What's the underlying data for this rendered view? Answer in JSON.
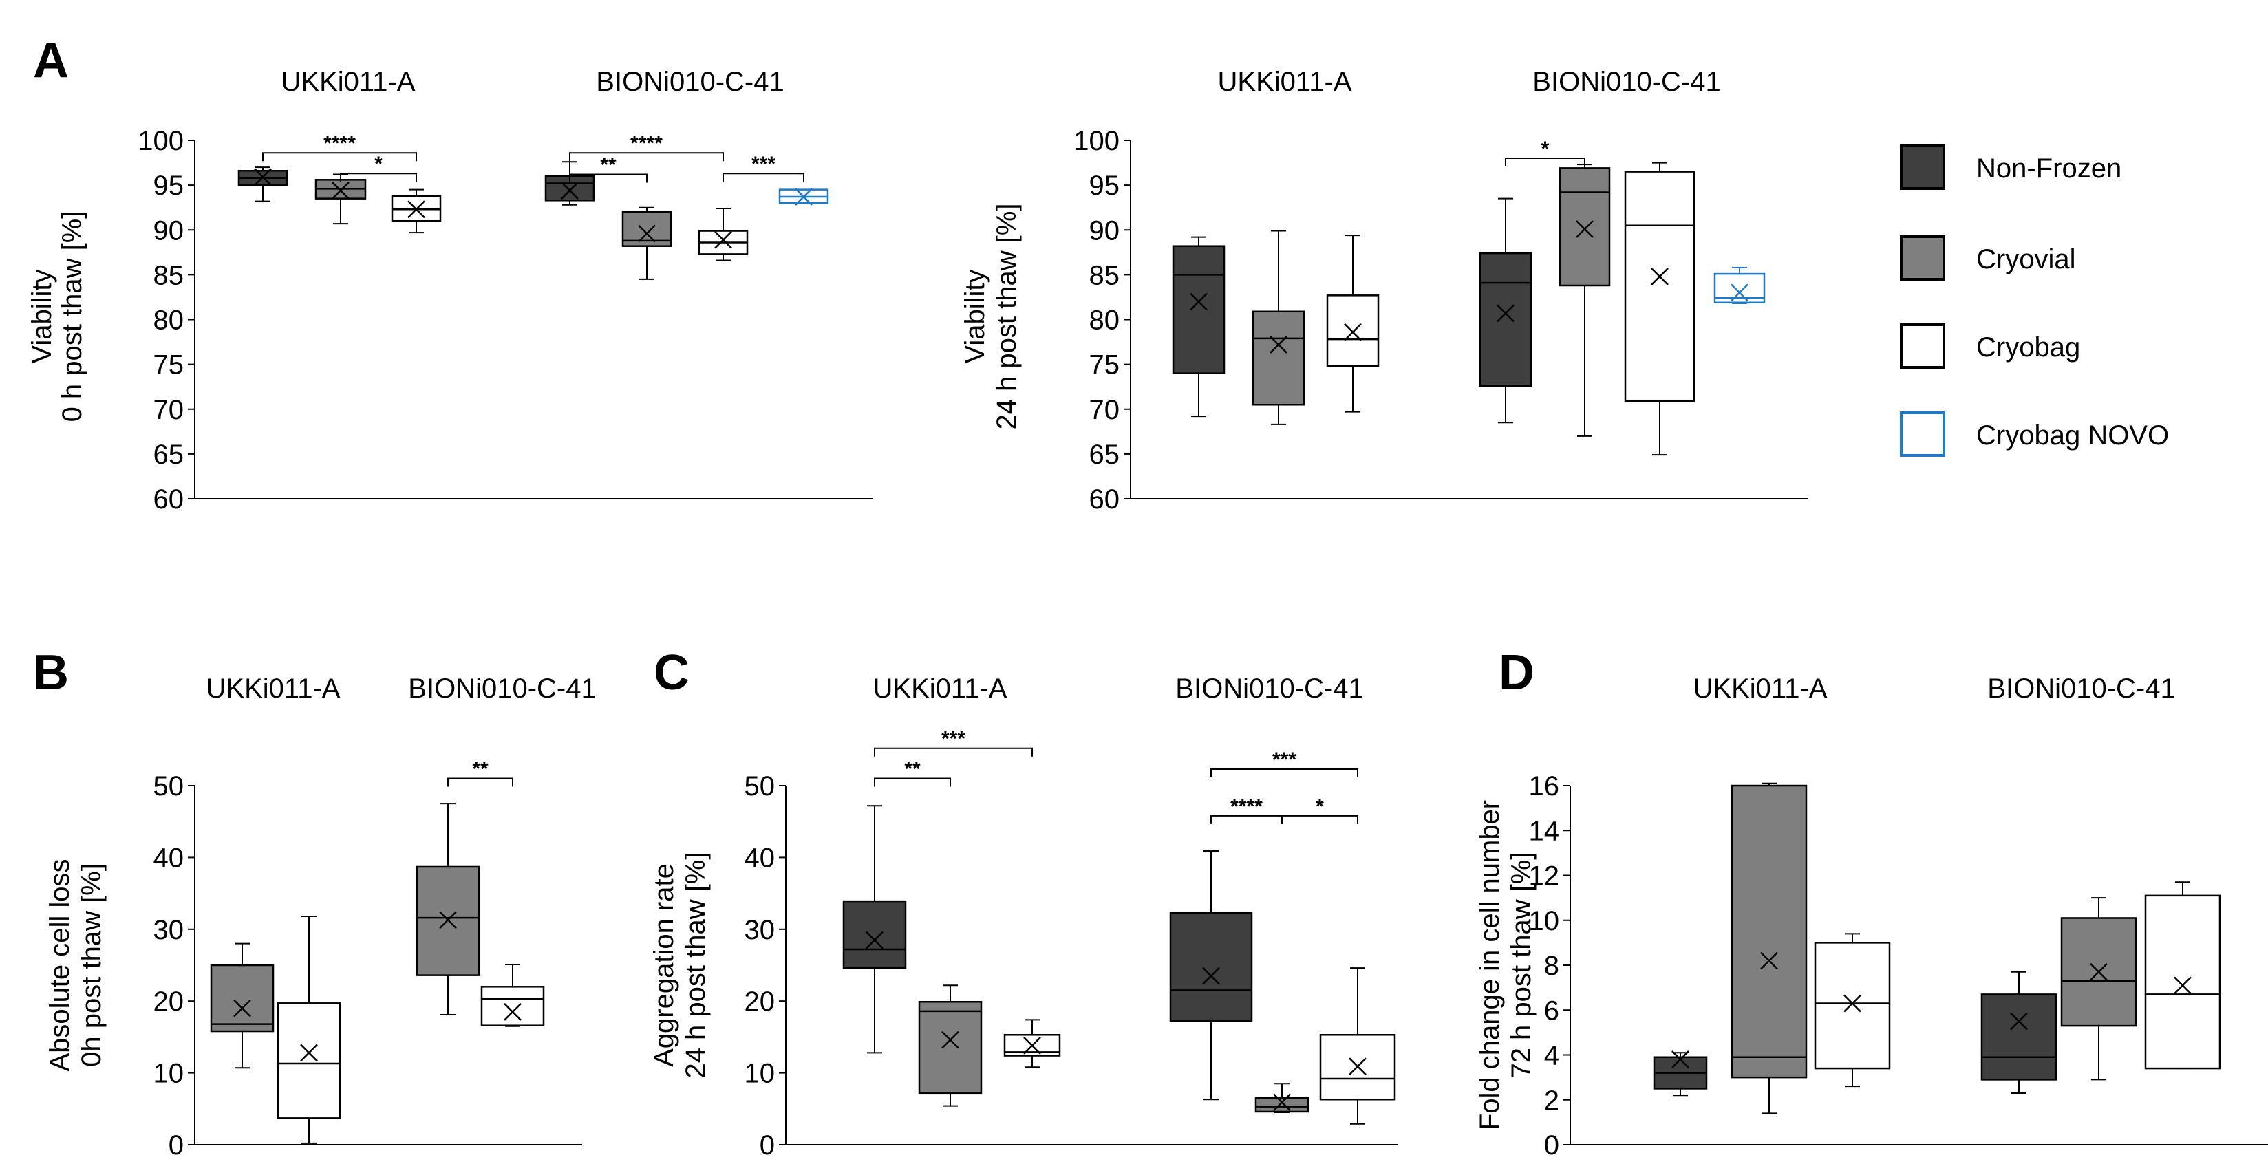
{
  "colors": {
    "non_frozen": "#3f3f3f",
    "cryovial": "#7f7f7f",
    "cryobag": "#ffffff",
    "cryobag_novo_edge": "#1f7ac8",
    "ink": "#000000"
  },
  "legend": [
    {
      "label": "Non-Frozen",
      "key": "non_frozen"
    },
    {
      "label": "Cryovial",
      "key": "cryovial"
    },
    {
      "label": "Cryobag",
      "key": "cryobag"
    },
    {
      "label": "Cryobag NOVO",
      "key": "cryobag_novo"
    }
  ],
  "chart_data": [
    {
      "id": "A-left",
      "type": "box",
      "panel_letter": "A",
      "groups": [
        "UKKi011-A",
        "BIONi010-C-41"
      ],
      "ylabel": [
        "Viability",
        "0 h post thaw [%]"
      ],
      "ylim": [
        60,
        100
      ],
      "yticks": [
        60,
        65,
        70,
        75,
        80,
        85,
        90,
        95,
        100
      ],
      "boxes": [
        {
          "group": 0,
          "series": "non_frozen",
          "min": 93.2,
          "q1": 95.0,
          "median": 95.8,
          "q3": 96.6,
          "max": 97.0,
          "mean": 95.9
        },
        {
          "group": 0,
          "series": "cryovial",
          "min": 90.7,
          "q1": 93.5,
          "median": 94.6,
          "q3": 95.6,
          "max": 96.2,
          "mean": 94.4
        },
        {
          "group": 0,
          "series": "cryobag",
          "min": 89.7,
          "q1": 91.0,
          "median": 92.3,
          "q3": 93.8,
          "max": 94.5,
          "mean": 92.3
        },
        {
          "group": 1,
          "series": "non_frozen",
          "min": 92.8,
          "q1": 93.3,
          "median": 95.2,
          "q3": 96.0,
          "max": 97.6,
          "mean": 94.4
        },
        {
          "group": 1,
          "series": "cryovial",
          "min": 84.5,
          "q1": 88.2,
          "median": 88.8,
          "q3": 92.0,
          "max": 92.5,
          "mean": 89.6
        },
        {
          "group": 1,
          "series": "cryobag",
          "min": 86.6,
          "q1": 87.3,
          "median": 88.6,
          "q3": 89.9,
          "max": 92.4,
          "mean": 88.9
        },
        {
          "group": 1,
          "series": "cryobag_novo",
          "min": 93.0,
          "q1": 93.0,
          "median": 93.7,
          "q3": 94.5,
          "max": 94.5,
          "mean": 93.7
        }
      ],
      "significance": [
        {
          "label": "****",
          "from": 0,
          "to": 2,
          "y": 98.6
        },
        {
          "label": "*",
          "from": 1,
          "to": 2,
          "y": 96.3
        },
        {
          "label": "****",
          "from": 3,
          "to": 5,
          "y": 98.6
        },
        {
          "label": "**",
          "from": 3,
          "to": 4,
          "y": 96.2
        },
        {
          "label": "***",
          "from": 5,
          "to": 6,
          "y": 96.3
        }
      ]
    },
    {
      "id": "A-right",
      "type": "box",
      "panel_letter": "",
      "groups": [
        "UKKi011-A",
        "BIONi010-C-41"
      ],
      "ylabel": [
        "Viability",
        "24 h post thaw [%]"
      ],
      "ylim": [
        60,
        100
      ],
      "yticks": [
        60,
        65,
        70,
        75,
        80,
        85,
        90,
        95,
        100
      ],
      "boxes": [
        {
          "group": 0,
          "series": "non_frozen",
          "min": 69.2,
          "q1": 74.0,
          "median": 85.0,
          "q3": 88.2,
          "max": 89.2,
          "mean": 82.0
        },
        {
          "group": 0,
          "series": "cryovial",
          "min": 68.3,
          "q1": 70.5,
          "median": 77.9,
          "q3": 80.9,
          "max": 89.9,
          "mean": 77.2
        },
        {
          "group": 0,
          "series": "cryobag",
          "min": 69.7,
          "q1": 74.8,
          "median": 77.8,
          "q3": 82.7,
          "max": 89.4,
          "mean": 78.6
        },
        {
          "group": 1,
          "series": "non_frozen",
          "min": 68.5,
          "q1": 72.6,
          "median": 84.1,
          "q3": 87.4,
          "max": 93.5,
          "mean": 80.7
        },
        {
          "group": 1,
          "series": "cryovial",
          "min": 67.0,
          "q1": 83.8,
          "median": 94.2,
          "q3": 96.9,
          "max": 97.3,
          "mean": 90.1
        },
        {
          "group": 1,
          "series": "cryobag",
          "min": 64.9,
          "q1": 70.9,
          "median": 90.5,
          "q3": 96.5,
          "max": 97.5,
          "mean": 84.8
        },
        {
          "group": 1,
          "series": "cryobag_novo",
          "min": 81.8,
          "q1": 81.9,
          "median": 82.4,
          "q3": 85.1,
          "max": 85.8,
          "mean": 83.0
        }
      ],
      "significance": [
        {
          "label": "*",
          "from": 3,
          "to": 4,
          "y": 98.0
        }
      ]
    },
    {
      "id": "B",
      "type": "box",
      "panel_letter": "B",
      "groups": [
        "UKKi011-A",
        "BIONi010-C-41"
      ],
      "ylabel": [
        "Absolute cell loss",
        "0h post thaw [%]"
      ],
      "ylim": [
        0,
        50
      ],
      "yticks": [
        0,
        10,
        20,
        30,
        40,
        50
      ],
      "boxes": [
        {
          "group": 0,
          "series": "cryovial",
          "min": 10.7,
          "q1": 15.8,
          "median": 16.8,
          "q3": 25.0,
          "max": 28.0,
          "mean": 19.0
        },
        {
          "group": 0,
          "series": "cryobag",
          "min": 0.2,
          "q1": 3.7,
          "median": 11.3,
          "q3": 19.7,
          "max": 31.8,
          "mean": 12.8
        },
        {
          "group": 1,
          "series": "cryovial",
          "min": 18.1,
          "q1": 23.6,
          "median": 31.6,
          "q3": 38.7,
          "max": 47.5,
          "mean": 31.3
        },
        {
          "group": 1,
          "series": "cryobag",
          "min": 16.5,
          "q1": 16.6,
          "median": 20.3,
          "q3": 22.0,
          "max": 25.1,
          "mean": 18.5
        }
      ],
      "significance": [
        {
          "label": "**",
          "from": 2,
          "to": 3,
          "y": 51.0
        }
      ]
    },
    {
      "id": "C",
      "type": "box",
      "panel_letter": "C",
      "groups": [
        "UKKi011-A",
        "BIONi010-C-41"
      ],
      "ylabel": [
        "Aggregation rate",
        "24 h post thaw [%]"
      ],
      "ylim": [
        0,
        50
      ],
      "yticks": [
        0,
        10,
        20,
        30,
        40,
        50
      ],
      "boxes": [
        {
          "group": 0,
          "series": "non_frozen",
          "min": 12.8,
          "q1": 24.6,
          "median": 27.2,
          "q3": 33.9,
          "max": 47.2,
          "mean": 28.5
        },
        {
          "group": 0,
          "series": "cryovial",
          "min": 5.4,
          "q1": 7.2,
          "median": 18.6,
          "q3": 19.9,
          "max": 22.2,
          "mean": 14.6
        },
        {
          "group": 0,
          "series": "cryobag",
          "min": 10.8,
          "q1": 12.4,
          "median": 12.9,
          "q3": 15.3,
          "max": 17.4,
          "mean": 13.8
        },
        {
          "group": 1,
          "series": "non_frozen",
          "min": 6.3,
          "q1": 17.2,
          "median": 21.5,
          "q3": 32.3,
          "max": 40.9,
          "mean": 23.5
        },
        {
          "group": 1,
          "series": "cryovial",
          "min": 4.5,
          "q1": 4.6,
          "median": 5.3,
          "q3": 6.5,
          "max": 8.5,
          "mean": 5.9
        },
        {
          "group": 1,
          "series": "cryobag",
          "min": 2.9,
          "q1": 6.3,
          "median": 9.2,
          "q3": 15.3,
          "max": 24.6,
          "mean": 10.9
        }
      ],
      "significance": [
        {
          "label": "***",
          "from": 0,
          "to": 2,
          "y": 55.2
        },
        {
          "label": "**",
          "from": 0,
          "to": 1,
          "y": 51.0
        },
        {
          "label": "***",
          "from": 3,
          "to": 5,
          "y": 52.3
        },
        {
          "label": "****",
          "from": 3,
          "to": 4,
          "y": 45.8
        },
        {
          "label": "*",
          "from": 4,
          "to": 5,
          "y": 45.8
        }
      ]
    },
    {
      "id": "D",
      "type": "box",
      "panel_letter": "D",
      "groups": [
        "UKKi011-A",
        "BIONi010-C-41"
      ],
      "ylabel": [
        "Fold change in cell number",
        "72 h post thaw [%]"
      ],
      "ylim": [
        0,
        16
      ],
      "yticks": [
        0,
        2,
        4,
        6,
        8,
        10,
        12,
        14,
        16
      ],
      "boxes": [
        {
          "group": 0,
          "series": "non_frozen",
          "min": 2.2,
          "q1": 2.5,
          "median": 3.2,
          "q3": 3.9,
          "max": 4.1,
          "mean": 3.8
        },
        {
          "group": 0,
          "series": "cryovial",
          "min": 1.4,
          "q1": 3.0,
          "median": 3.9,
          "q3": 16.0,
          "max": 16.1,
          "mean": 8.2
        },
        {
          "group": 0,
          "series": "cryobag",
          "min": 2.6,
          "q1": 3.4,
          "median": 6.3,
          "q3": 9.0,
          "max": 9.4,
          "mean": 6.3
        },
        {
          "group": 1,
          "series": "non_frozen",
          "min": 2.3,
          "q1": 2.9,
          "median": 3.9,
          "q3": 6.7,
          "max": 7.7,
          "mean": 5.5
        },
        {
          "group": 1,
          "series": "cryovial",
          "min": 2.9,
          "q1": 5.3,
          "median": 7.3,
          "q3": 10.1,
          "max": 11.0,
          "mean": 7.7
        },
        {
          "group": 1,
          "series": "cryobag",
          "min": 3.4,
          "q1": 3.4,
          "median": 6.7,
          "q3": 11.1,
          "max": 11.7,
          "mean": 7.1
        }
      ],
      "significance": []
    }
  ]
}
